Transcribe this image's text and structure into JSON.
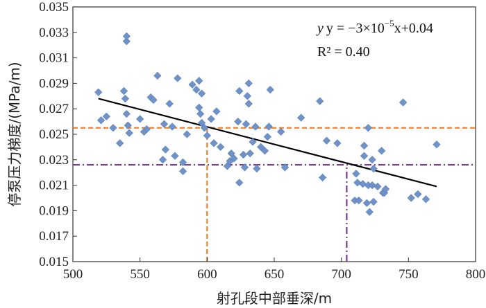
{
  "chart_data": {
    "type": "scatter",
    "title": "",
    "xlabel": "射孔段中部垂深/m",
    "ylabel": "停泵压力梯度/(MPa/m)",
    "xlim": [
      500,
      800
    ],
    "ylim": [
      0.015,
      0.035
    ],
    "x_ticks": [
      500,
      550,
      600,
      650,
      700,
      750,
      800
    ],
    "y_ticks": [
      0.015,
      0.017,
      0.019,
      0.021,
      0.023,
      0.025,
      0.027,
      0.029,
      0.031,
      0.033,
      0.035
    ],
    "x_tick_labels": [
      "500",
      "550",
      "600",
      "650",
      "700",
      "750",
      "800"
    ],
    "y_tick_labels": [
      "0.015",
      "0.017",
      "0.019",
      "0.021",
      "0.023",
      "0.025",
      "0.027",
      "0.029",
      "0.031",
      "0.033",
      "0.035"
    ],
    "grid": false,
    "marker_color": "#6f93c9",
    "marker_stroke": "#5a7fb8",
    "fit_color": "#000000",
    "ref_h1_color": "#f07d2a",
    "ref_h2_color": "#7b3b8c",
    "series": [
      {
        "name": "data",
        "points": [
          [
            519,
            0.0283
          ],
          [
            521,
            0.0261
          ],
          [
            525,
            0.0264
          ],
          [
            530,
            0.0255
          ],
          [
            535,
            0.0243
          ],
          [
            538,
            0.0284
          ],
          [
            540,
            0.0323
          ],
          [
            540,
            0.0327
          ],
          [
            539,
            0.0278
          ],
          [
            540,
            0.0266
          ],
          [
            541,
            0.0257
          ],
          [
            542,
            0.0251
          ],
          [
            550,
            0.0262
          ],
          [
            553,
            0.0252
          ],
          [
            555,
            0.0254
          ],
          [
            558,
            0.0279
          ],
          [
            560,
            0.0277
          ],
          [
            563,
            0.0296
          ],
          [
            567,
            0.023
          ],
          [
            568,
            0.0258
          ],
          [
            569,
            0.0238
          ],
          [
            572,
            0.0274
          ],
          [
            574,
            0.0256
          ],
          [
            576,
            0.0233
          ],
          [
            578,
            0.0294
          ],
          [
            582,
            0.0228
          ],
          [
            582,
            0.0221
          ],
          [
            585,
            0.025
          ],
          [
            589,
            0.0289
          ],
          [
            592,
            0.0285
          ],
          [
            594,
            0.0292
          ],
          [
            596,
            0.0282
          ],
          [
            594,
            0.0271
          ],
          [
            595,
            0.0266
          ],
          [
            596,
            0.0259
          ],
          [
            598,
            0.0255
          ],
          [
            600,
            0.0249
          ],
          [
            603,
            0.0262
          ],
          [
            605,
            0.0243
          ],
          [
            607,
            0.0268
          ],
          [
            610,
            0.024
          ],
          [
            615,
            0.0225
          ],
          [
            617,
            0.0229
          ],
          [
            620,
            0.0231
          ],
          [
            618,
            0.0235
          ],
          [
            623,
            0.026
          ],
          [
            624,
            0.0284
          ],
          [
            624,
            0.0212
          ],
          [
            627,
            0.0234
          ],
          [
            628,
            0.0224
          ],
          [
            629,
            0.0258
          ],
          [
            630,
            0.028
          ],
          [
            631,
            0.0274
          ],
          [
            631,
            0.029
          ],
          [
            632,
            0.0235
          ],
          [
            634,
            0.0244
          ],
          [
            636,
            0.0256
          ],
          [
            637,
            0.0223
          ],
          [
            640,
            0.024
          ],
          [
            643,
            0.0237
          ],
          [
            645,
            0.0248
          ],
          [
            646,
            0.0256
          ],
          [
            647,
            0.0285
          ],
          [
            655,
            0.0252
          ],
          [
            658,
            0.0224
          ],
          [
            670,
            0.0263
          ],
          [
            684,
            0.0276
          ],
          [
            686,
            0.0216
          ],
          [
            689,
            0.0245
          ],
          [
            697,
            0.0243
          ],
          [
            710,
            0.0198
          ],
          [
            711,
            0.0219
          ],
          [
            712,
            0.0212
          ],
          [
            713,
            0.0198
          ],
          [
            716,
            0.0211
          ],
          [
            717,
            0.0241
          ],
          [
            717,
            0.0233
          ],
          [
            719,
            0.0196
          ],
          [
            720,
            0.021
          ],
          [
            720,
            0.0255
          ],
          [
            721,
            0.0189
          ],
          [
            723,
            0.021
          ],
          [
            723,
            0.023
          ],
          [
            724,
            0.0223
          ],
          [
            724,
            0.0197
          ],
          [
            727,
            0.0209
          ],
          [
            730,
            0.0237
          ],
          [
            731,
            0.0204
          ],
          [
            732,
            0.0204
          ],
          [
            733,
            0.0207
          ],
          [
            746,
            0.0275
          ],
          [
            752,
            0.02
          ],
          [
            757,
            0.0203
          ],
          [
            763,
            0.0199
          ],
          [
            771,
            0.0242
          ]
        ]
      }
    ],
    "fit_line": {
      "x": [
        519,
        771
      ],
      "y": [
        0.0278,
        0.0209
      ]
    },
    "reference_lines": [
      {
        "type": "horizontal",
        "y": 0.0255,
        "style": "dashed",
        "color": "#f07d2a"
      },
      {
        "type": "vertical",
        "x": 600,
        "style": "dashed",
        "color": "#f07d2a"
      },
      {
        "type": "horizontal",
        "y": 0.0226,
        "style": "dashdot",
        "color": "#7b3b8c"
      },
      {
        "type": "vertical",
        "x": 704,
        "style": "dashdot",
        "color": "#7b3b8c"
      }
    ],
    "annotations": {
      "equation_prefix": "y = −3×10",
      "equation_exponent": "−5",
      "equation_suffix": "x+0.04",
      "r_squared_label": "R² = 0.40"
    }
  }
}
